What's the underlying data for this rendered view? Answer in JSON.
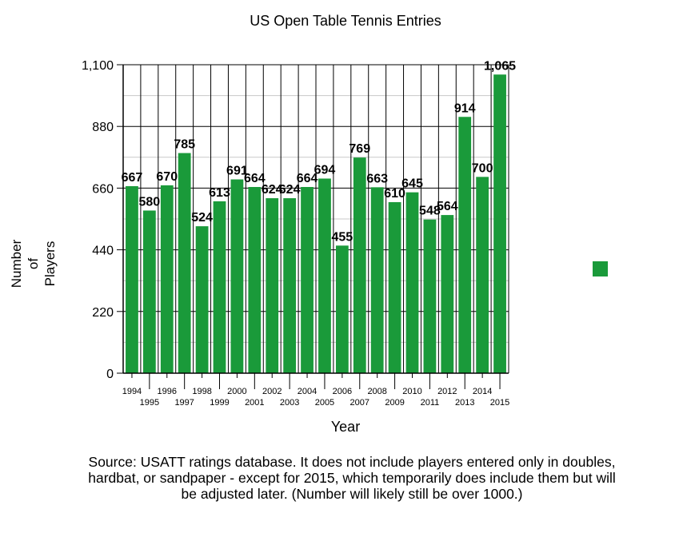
{
  "chart_data": {
    "type": "bar",
    "title": "US Open Table Tennis Entries",
    "xlabel": "Year",
    "ylabel": "Number of Players",
    "ylabel_lines": [
      "Number",
      "of",
      "Players"
    ],
    "categories": [
      "1994",
      "1995",
      "1996",
      "1997",
      "1998",
      "1999",
      "2000",
      "2001",
      "2002",
      "2003",
      "2004",
      "2005",
      "2006",
      "2007",
      "2008",
      "2009",
      "2010",
      "2011",
      "2012",
      "2013",
      "2014",
      "2015"
    ],
    "values": [
      667,
      580,
      670,
      785,
      524,
      613,
      691,
      664,
      624,
      624,
      664,
      694,
      455,
      769,
      663,
      610,
      645,
      548,
      564,
      914,
      700,
      1065
    ],
    "data_labels": [
      "667",
      "580",
      "670",
      "785",
      "524",
      "613",
      "691",
      "664",
      "624",
      "624",
      "664",
      "694",
      "455",
      "769",
      "663",
      "610",
      "645",
      "548",
      "564",
      "914",
      "700",
      "1,065"
    ],
    "ylim": [
      0,
      1100
    ],
    "yticks": [
      0,
      220,
      440,
      660,
      880,
      1100
    ],
    "ytick_labels": [
      "0",
      "220",
      "440",
      "660",
      "880",
      "1,100"
    ],
    "grid": true,
    "bar_color": "#1a9a3a",
    "legend_position": "right"
  },
  "caption": "Source: USATT ratings database. It does not include players entered only in doubles, hardbat, or sandpaper - except for 2015, which temporarily does include them but will be adjusted later. (Number will likely still be over 1000.)"
}
